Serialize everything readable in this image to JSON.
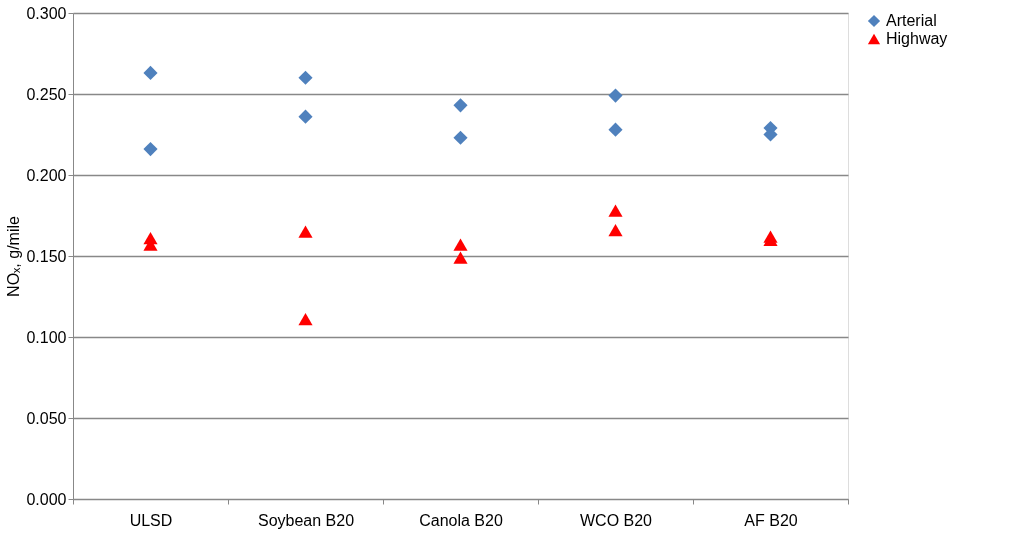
{
  "chart_data": {
    "type": "scatter",
    "ylabel": "NOₓ, g/mile",
    "categories": [
      "ULSD",
      "Soybean B20",
      "Canola B20",
      "WCO B20",
      "AF B20"
    ],
    "series": [
      {
        "name": "Arterial",
        "color": "#4f81bd",
        "marker": "diamond",
        "x": [
          "ULSD",
          "ULSD",
          "Soybean B20",
          "Soybean B20",
          "Canola B20",
          "Canola B20",
          "WCO B20",
          "WCO B20",
          "AF B20",
          "AF B20"
        ],
        "values": [
          0.263,
          0.216,
          0.26,
          0.236,
          0.243,
          0.223,
          0.249,
          0.228,
          0.229,
          0.225
        ]
      },
      {
        "name": "Highway",
        "color": "#ff0000",
        "marker": "triangle",
        "x": [
          "ULSD",
          "ULSD",
          "Soybean B20",
          "Soybean B20",
          "Canola B20",
          "Canola B20",
          "WCO B20",
          "WCO B20",
          "AF B20",
          "AF B20"
        ],
        "values": [
          0.161,
          0.157,
          0.165,
          0.111,
          0.157,
          0.149,
          0.178,
          0.166,
          0.162,
          0.16
        ]
      }
    ],
    "ylim": [
      0,
      0.3
    ],
    "yticks": [
      {
        "value": 0,
        "label": "0.000"
      },
      {
        "value": 0.05,
        "label": "0.050"
      },
      {
        "value": 0.1,
        "label": "0.100"
      },
      {
        "value": 0.15,
        "label": "0.150"
      },
      {
        "value": 0.2,
        "label": "0.200"
      },
      {
        "value": 0.25,
        "label": "0.250"
      },
      {
        "value": 0.3,
        "label": "0.300"
      }
    ],
    "grid": "y",
    "legend": "right"
  }
}
